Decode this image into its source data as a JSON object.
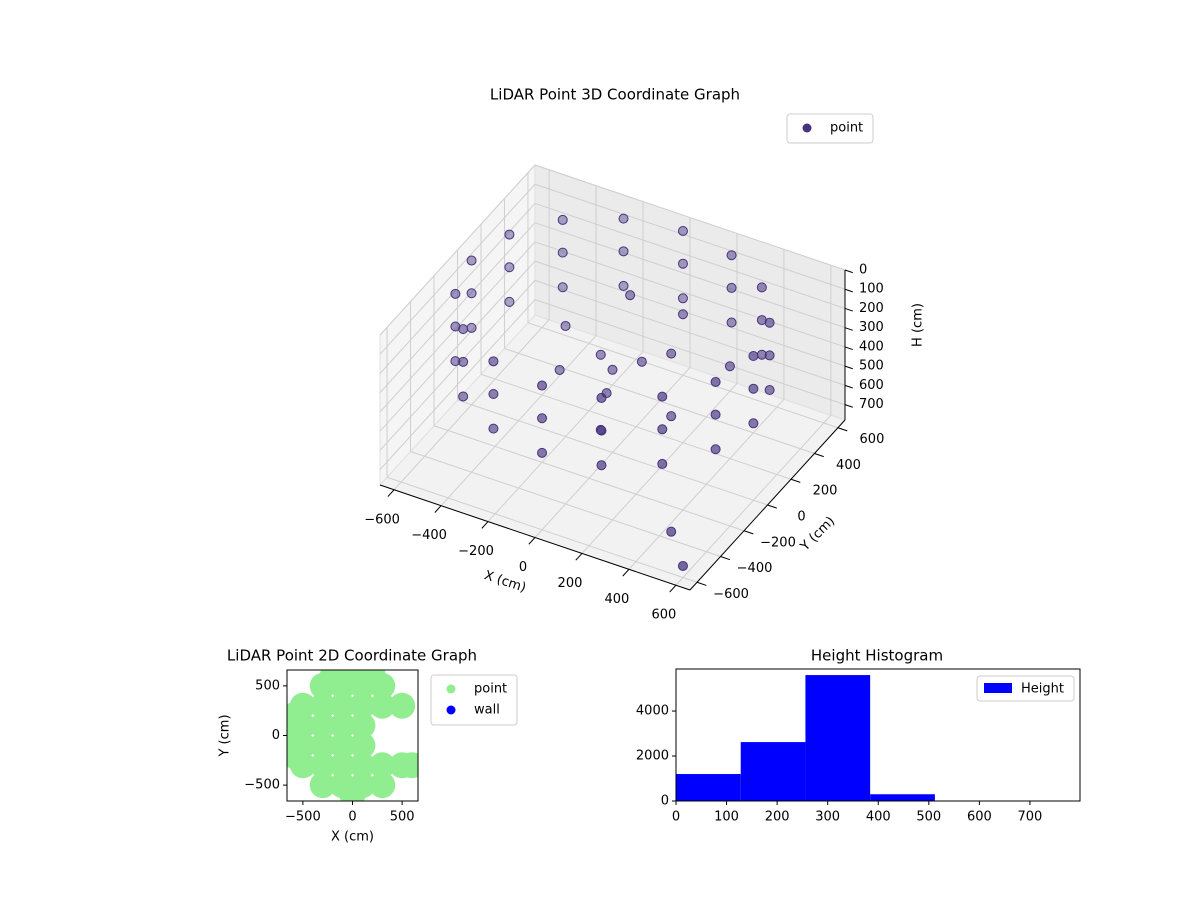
{
  "chart_data": [
    {
      "type": "scatter3d",
      "title": "LiDAR Point 3D Coordinate Graph",
      "xlabel": "X (cm)",
      "ylabel": "Y (cm)",
      "zlabel": "H (cm)",
      "series": [
        {
          "name": "point",
          "color": "#46327e",
          "x": [
            600,
            600,
            600,
            554,
            554,
            554,
            424,
            424,
            424,
            230,
            230,
            230,
            0,
            0,
            0,
            -230,
            -230,
            -230,
            -424,
            -424,
            -424,
            -554,
            -554,
            -554,
            -600,
            -600,
            -600,
            -554,
            -554,
            -554,
            -424,
            -424,
            -424,
            -230,
            -230,
            -230,
            0,
            0,
            0,
            230,
            230,
            230,
            424,
            424,
            424,
            554,
            554,
            554,
            0,
            100,
            -100,
            -200,
            50,
            200,
            150,
            -50,
            300,
            -300,
            100,
            400,
            500,
            600
          ],
          "y": [
            0,
            0,
            0,
            230,
            230,
            230,
            424,
            424,
            424,
            554,
            554,
            554,
            600,
            600,
            600,
            554,
            554,
            554,
            424,
            424,
            424,
            230,
            230,
            230,
            0,
            0,
            0,
            -230,
            -230,
            -230,
            -424,
            -424,
            -424,
            -554,
            -554,
            -554,
            -600,
            -600,
            -600,
            -554,
            -554,
            -554,
            -424,
            -424,
            -424,
            -230,
            -230,
            -230,
            0,
            50,
            100,
            -50,
            -150,
            100,
            300,
            250,
            -100,
            200,
            -300,
            200,
            -500,
            -600
          ],
          "z": [
            30,
            200,
            380,
            30,
            200,
            380,
            30,
            200,
            380,
            30,
            200,
            380,
            30,
            200,
            380,
            30,
            200,
            380,
            30,
            200,
            380,
            30,
            200,
            380,
            30,
            200,
            380,
            30,
            200,
            380,
            30,
            200,
            380,
            30,
            200,
            380,
            30,
            200,
            380,
            30,
            200,
            380,
            30,
            200,
            380,
            30,
            200,
            380,
            350,
            300,
            380,
            400,
            350,
            250,
            200,
            150,
            400,
            380,
            420,
            300,
            650,
            720
          ]
        }
      ],
      "xlim": [
        -660,
        660
      ],
      "ylim": [
        -660,
        660
      ],
      "zlim": [
        780,
        0
      ],
      "xticks": [
        {
          "value": -600,
          "label": "−600"
        },
        {
          "value": -400,
          "label": "−400"
        },
        {
          "value": -200,
          "label": "−200"
        },
        0,
        200,
        400,
        600
      ],
      "yticks": [
        {
          "value": -600,
          "label": "−600"
        },
        {
          "value": -400,
          "label": "−400"
        },
        {
          "value": -200,
          "label": "−200"
        },
        0,
        200,
        400,
        600
      ],
      "zticks": [
        0,
        100,
        200,
        300,
        400,
        500,
        600,
        700
      ],
      "legend": "upper right"
    },
    {
      "type": "scatter",
      "title": "LiDAR Point 2D Coordinate Graph",
      "xlabel": "X (cm)",
      "ylabel": "Y (cm)",
      "series": [
        {
          "name": "point",
          "color": "#90ee90",
          "x": [
            -500,
            -500,
            -500,
            -500,
            -300,
            -300,
            -300,
            -300,
            -300,
            -300,
            -100,
            -100,
            -100,
            -100,
            -100,
            -100,
            100,
            100,
            100,
            100,
            100,
            100,
            300,
            300,
            300,
            300,
            500,
            500,
            -600,
            0,
            0,
            200,
            -200,
            600,
            -600,
            -600
          ],
          "y": [
            -300,
            -100,
            100,
            300,
            -500,
            -300,
            -100,
            100,
            300,
            500,
            -500,
            -300,
            -100,
            100,
            300,
            500,
            -500,
            -300,
            -100,
            100,
            300,
            500,
            -500,
            -300,
            300,
            500,
            -300,
            300,
            0,
            600,
            -600,
            620,
            600,
            -300,
            -200,
            200
          ]
        },
        {
          "name": "wall",
          "color": "#0000ff",
          "x": [],
          "y": []
        }
      ],
      "xlim": [
        -660,
        660
      ],
      "ylim": [
        -660,
        660
      ],
      "xticks": [
        {
          "value": -500,
          "label": "−500"
        },
        0,
        500
      ],
      "yticks": [
        {
          "value": -500,
          "label": "−500"
        },
        0,
        500
      ],
      "legend": "outside upper right"
    },
    {
      "type": "histogram",
      "title": "Height Histogram",
      "name": "Height",
      "color": "#0000ff",
      "bins": [
        0,
        128,
        256,
        384,
        512,
        640,
        768
      ],
      "counts": [
        1200,
        2620,
        5600,
        300,
        10,
        5
      ],
      "xlim": [
        0,
        799
      ],
      "ylim": [
        0,
        5870
      ],
      "xticks": [
        0,
        100,
        200,
        300,
        400,
        500,
        600,
        700
      ],
      "yticks": [
        0,
        2000,
        4000
      ],
      "legend": "upper right"
    }
  ]
}
